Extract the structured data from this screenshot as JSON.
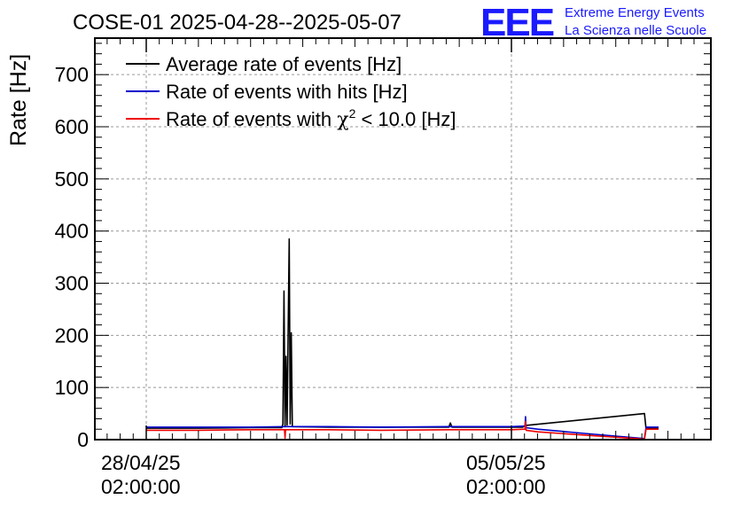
{
  "chart_data": {
    "type": "line",
    "title": "COSE-01 2025-04-28--2025-05-07",
    "ylabel": "Rate [Hz]",
    "xlabel": "",
    "ylim": [
      0,
      770
    ],
    "y_ticks": [
      0,
      100,
      200,
      300,
      400,
      500,
      600,
      700
    ],
    "x_ticks": [
      {
        "day": 0,
        "label_line1": "28/04/25",
        "label_line2": "02:00:00"
      },
      {
        "day": 7,
        "label_line1": "05/05/25",
        "label_line2": "02:00:00"
      }
    ],
    "x_unit_note": "x values are days since 28/04/25 02:00:00",
    "grid": true,
    "legend_position": "top-left",
    "series": [
      {
        "name": "Average rate of events [Hz]",
        "color": "#000000",
        "points": [
          [
            0,
            22
          ],
          [
            1.0,
            22
          ],
          [
            2.0,
            23
          ],
          [
            2.6,
            23
          ],
          [
            2.62,
            30
          ],
          [
            2.64,
            285
          ],
          [
            2.66,
            25
          ],
          [
            2.68,
            160
          ],
          [
            2.7,
            28
          ],
          [
            2.74,
            385
          ],
          [
            2.76,
            30
          ],
          [
            2.78,
            205
          ],
          [
            2.8,
            25
          ],
          [
            3.5,
            24
          ],
          [
            4.5,
            24
          ],
          [
            5.8,
            24
          ],
          [
            5.83,
            32
          ],
          [
            5.86,
            24
          ],
          [
            7.0,
            24
          ],
          [
            7.22,
            24
          ],
          [
            7.26,
            27
          ],
          [
            9.55,
            50
          ],
          [
            9.58,
            20
          ],
          [
            9.62,
            22
          ],
          [
            9.82,
            22
          ]
        ]
      },
      {
        "name": "Rate of events with hits [Hz]",
        "color": "#0000cc",
        "points": [
          [
            0,
            24
          ],
          [
            1.0,
            24
          ],
          [
            2.0,
            24
          ],
          [
            2.7,
            25
          ],
          [
            3.5,
            25
          ],
          [
            4.5,
            24
          ],
          [
            5.8,
            25
          ],
          [
            7.0,
            25
          ],
          [
            7.26,
            26
          ],
          [
            7.27,
            44
          ],
          [
            7.28,
            23
          ],
          [
            7.5,
            20
          ],
          [
            8.5,
            11
          ],
          [
            9.55,
            2
          ],
          [
            9.58,
            24
          ],
          [
            9.62,
            24
          ],
          [
            9.82,
            24
          ]
        ]
      },
      {
        "name": "Rate of events with χ² < 10.0 [Hz]",
        "color": "#ee0000",
        "points": [
          [
            0,
            18
          ],
          [
            1.0,
            18
          ],
          [
            2.0,
            19
          ],
          [
            2.65,
            19
          ],
          [
            2.66,
            3
          ],
          [
            2.67,
            19
          ],
          [
            3.5,
            19
          ],
          [
            4.5,
            18
          ],
          [
            5.8,
            19
          ],
          [
            7.0,
            19
          ],
          [
            7.26,
            20
          ],
          [
            7.27,
            35
          ],
          [
            7.28,
            18
          ],
          [
            7.5,
            15
          ],
          [
            8.5,
            8
          ],
          [
            9.55,
            1
          ],
          [
            9.58,
            20
          ],
          [
            9.62,
            20
          ],
          [
            9.82,
            20
          ]
        ]
      }
    ],
    "legend": [
      {
        "label": "Average rate of events [Hz]",
        "color": "#000000"
      },
      {
        "label": "Rate of events with hits [Hz]",
        "color": "#0000cc"
      },
      {
        "label_prefix": "Rate of events with ",
        "label_symbol": "χ",
        "label_sup": "2",
        "label_suffix": " < 10.0 [Hz]",
        "color": "#ee0000"
      }
    ]
  },
  "logo": {
    "text": "EEE",
    "line1": "Extreme Energy Events",
    "line2": "La Scienza nelle Scuole",
    "color": "#1a1aff"
  }
}
